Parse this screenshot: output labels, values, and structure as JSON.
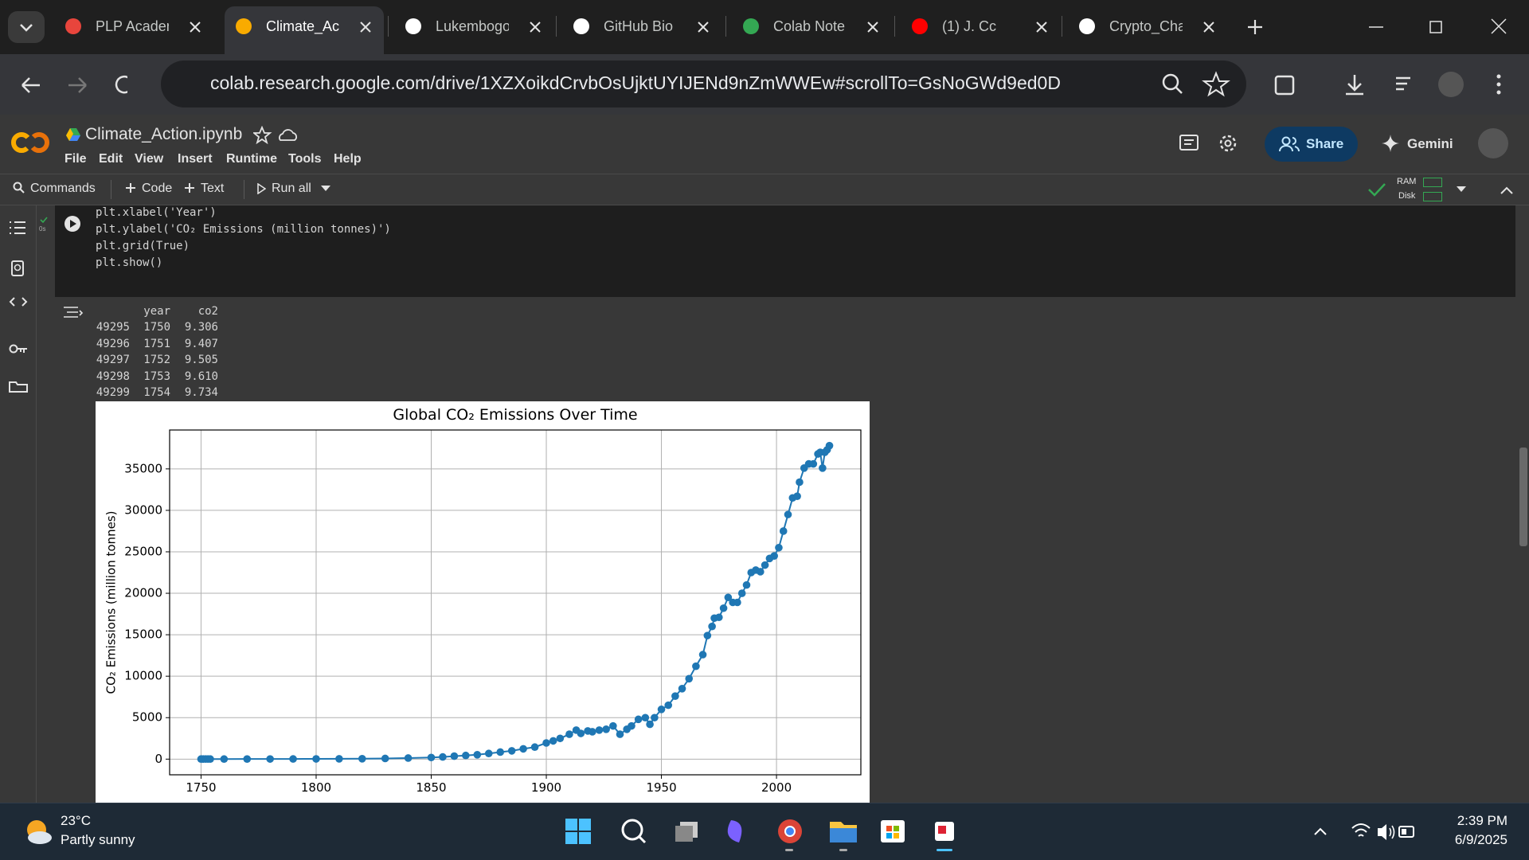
{
  "browser": {
    "tabs": [
      "PLP Acaden",
      "Climate_Act",
      "Lukembogo",
      "GitHub Bio",
      "Colab Note",
      "(1) J. Cc",
      "Crypto_Cha"
    ],
    "url": "colab.research.google.com/drive/1XZXoikdCrvbOsUjktUYIJENd9nZmWWEw#scrollTo=GsNoGWd9ed0D"
  },
  "colab": {
    "notebook_title": "Climate_Action.ipynb",
    "menu": [
      "File",
      "Edit",
      "View",
      "Insert",
      "Runtime",
      "Tools",
      "Help"
    ],
    "share": "Share",
    "gemini": "Gemini",
    "toolbar": {
      "commands": "Commands",
      "code": "Code",
      "text": "Text",
      "run_all": "Run all"
    },
    "ram": "RAM",
    "disk": "Disk"
  },
  "cell": {
    "exec_time": "0s",
    "code": [
      "plt.xlabel('Year')",
      "plt.ylabel('CO₂ Emissions (million tonnes)')",
      "plt.grid(True)",
      "plt.show()"
    ]
  },
  "output": {
    "columns": [
      "year",
      "co2"
    ],
    "rows": [
      [
        "49295",
        "1750",
        "9.306"
      ],
      [
        "49296",
        "1751",
        "9.407"
      ],
      [
        "49297",
        "1752",
        "9.505"
      ],
      [
        "49298",
        "1753",
        "9.610"
      ],
      [
        "49299",
        "1754",
        "9.734"
      ]
    ]
  },
  "chart_data": {
    "type": "line",
    "marker": "o",
    "title": "Global CO₂ Emissions Over Time",
    "ylabel": "CO₂ Emissions (million tonnes)",
    "color": "#1f77b4",
    "grid": true,
    "x": [
      1750,
      1751,
      1752,
      1753,
      1754,
      1760,
      1770,
      1780,
      1790,
      1800,
      1810,
      1820,
      1830,
      1840,
      1850,
      1855,
      1860,
      1865,
      1870,
      1875,
      1880,
      1885,
      1890,
      1895,
      1900,
      1903,
      1906,
      1910,
      1913,
      1915,
      1918,
      1920,
      1923,
      1926,
      1929,
      1932,
      1935,
      1937,
      1940,
      1943,
      1945,
      1947,
      1950,
      1953,
      1956,
      1959,
      1962,
      1965,
      1968,
      1970,
      1972,
      1973,
      1975,
      1977,
      1979,
      1981,
      1983,
      1985,
      1987,
      1989,
      1991,
      1993,
      1995,
      1997,
      1999,
      2001,
      2003,
      2005,
      2007,
      2009,
      2010,
      2012,
      2014,
      2016,
      2018,
      2019,
      2020,
      2021,
      2022,
      2023
    ],
    "values": [
      9.306,
      9.407,
      9.505,
      9.61,
      9.734,
      10,
      13,
      17,
      22,
      28,
      38,
      50,
      80,
      130,
      197,
      260,
      360,
      440,
      530,
      680,
      850,
      1000,
      1240,
      1450,
      1950,
      2200,
      2500,
      3000,
      3500,
      3100,
      3400,
      3300,
      3500,
      3600,
      4000,
      3000,
      3600,
      4000,
      4800,
      5000,
      4200,
      5000,
      6000,
      6500,
      7600,
      8500,
      9700,
      11200,
      12600,
      14900,
      16000,
      17000,
      17100,
      18200,
      19500,
      18900,
      18900,
      20000,
      21000,
      22500,
      22800,
      22600,
      23400,
      24200,
      24500,
      25500,
      27500,
      29500,
      31500,
      31700,
      33400,
      35100,
      35600,
      35600,
      36800,
      37000,
      35100,
      37000,
      37300,
      37800
    ],
    "xlim": [
      1736.35,
      2036.65
    ],
    "ylim": [
      -1890,
      39690
    ],
    "xticks": [
      1750,
      1800,
      1850,
      1900,
      1950,
      2000
    ],
    "yticks": [
      0,
      5000,
      10000,
      15000,
      20000,
      25000,
      30000,
      35000
    ]
  },
  "taskbar": {
    "temperature": "23°C",
    "weather": "Partly sunny",
    "time": "2:39 PM",
    "date": "6/9/2025"
  }
}
